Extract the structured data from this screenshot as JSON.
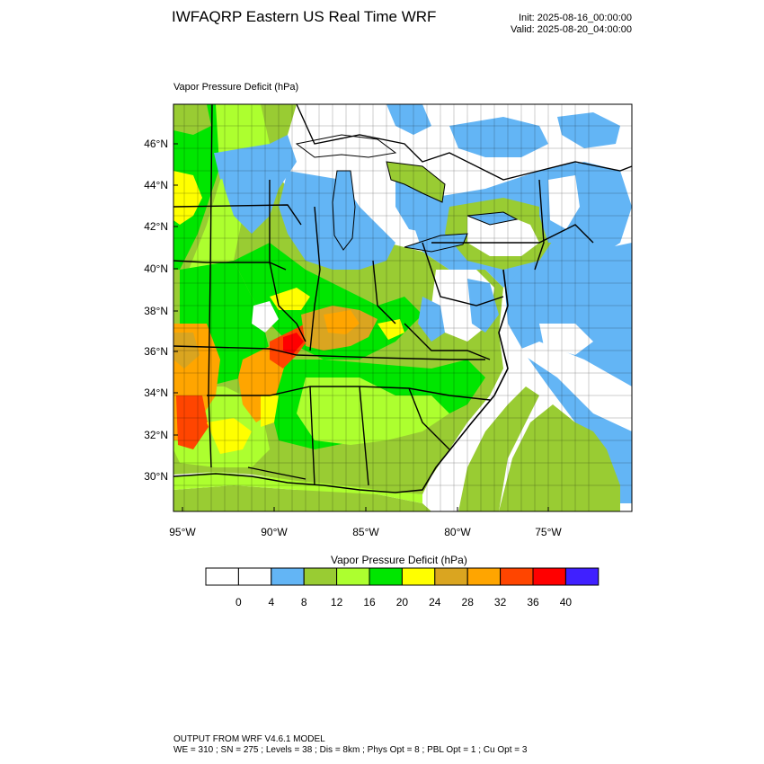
{
  "header": {
    "title": "IWFAQRP Eastern US Real Time WRF",
    "init": "Init: 2025-08-16_00:00:00",
    "valid": "Valid: 2025-08-20_04:00:00"
  },
  "map": {
    "field_label": "Vapor Pressure Deficit   (hPa)",
    "lat_labels": [
      "46°N",
      "44°N",
      "42°N",
      "40°N",
      "38°N",
      "36°N",
      "34°N",
      "32°N",
      "30°N"
    ],
    "lon_labels": [
      "95°W",
      "90°W",
      "85°W",
      "80°W",
      "75°W"
    ]
  },
  "colorbar": {
    "title": "Vapor Pressure Deficit  (hPa)",
    "tick_labels": [
      "0",
      "4",
      "8",
      "12",
      "16",
      "20",
      "24",
      "28",
      "32",
      "36",
      "40"
    ],
    "colors": [
      "#ffffff",
      "#ffffff",
      "#63b5f5",
      "#99cc33",
      "#adff2f",
      "#00e600",
      "#ffff00",
      "#daa520",
      "#ffa500",
      "#ff4500",
      "#ff0000",
      "#4020ff"
    ]
  },
  "footer": {
    "line1": "OUTPUT FROM WRF V4.6.1 MODEL",
    "line2": "WE = 310 ; SN = 275 ; Levels = 38 ; Dis = 8km ; Phys Opt = 8 ; PBL Opt = 1 ; Cu Opt = 3"
  }
}
